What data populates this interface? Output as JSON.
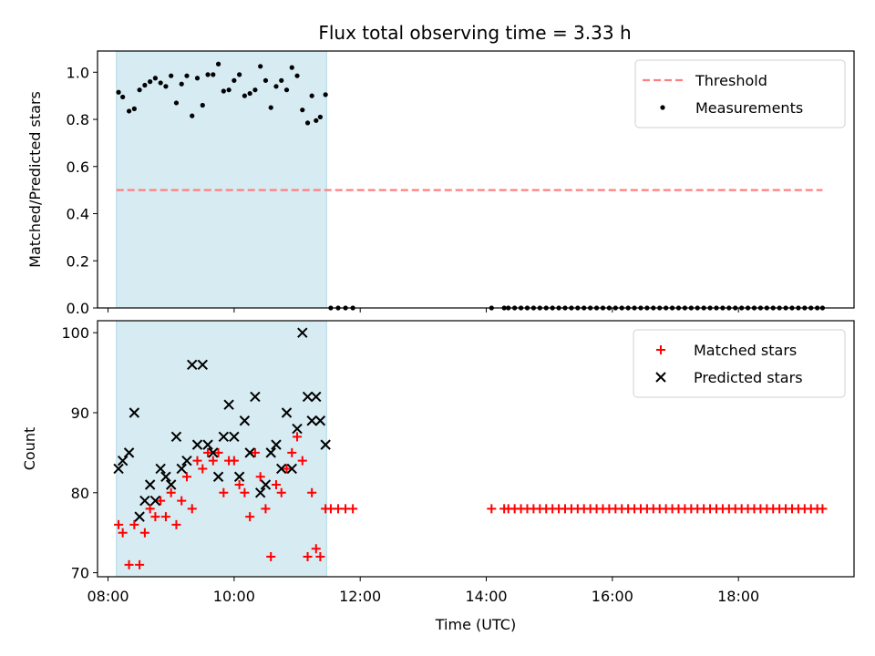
{
  "figure_title": "Flux total observing time = 3.33 h",
  "chart_data": [
    {
      "type": "scatter",
      "ylabel": "Matched/Predicted stars",
      "ylim": [
        0.0,
        1.09
      ],
      "yticks": [
        0.0,
        0.2,
        0.4,
        0.6,
        0.8,
        1.0
      ],
      "ytick_labels": [
        "0.0",
        "0.2",
        "0.4",
        "0.6",
        "0.8",
        "1.0"
      ],
      "xlim": [
        "07:50",
        "19:50"
      ],
      "xticks": [
        "08:00",
        "10:00",
        "12:00",
        "14:00",
        "16:00",
        "18:00"
      ],
      "shaded_span": [
        "08:08",
        "11:28"
      ],
      "legend_position": "upper right",
      "threshold": {
        "name": "Threshold",
        "value": 0.5,
        "x_range": [
          "08:08",
          "19:20"
        ],
        "color": "#ff7f7f"
      },
      "series": [
        {
          "name": "Measurements",
          "color": "#000000",
          "points": [
            [
              "08:10",
              0.915
            ],
            [
              "08:14",
              0.895
            ],
            [
              "08:20",
              0.835
            ],
            [
              "08:25",
              0.845
            ],
            [
              "08:30",
              0.925
            ],
            [
              "08:35",
              0.945
            ],
            [
              "08:40",
              0.96
            ],
            [
              "08:45",
              0.975
            ],
            [
              "08:50",
              0.955
            ],
            [
              "08:55",
              0.94
            ],
            [
              "09:00",
              0.985
            ],
            [
              "09:05",
              0.87
            ],
            [
              "09:10",
              0.95
            ],
            [
              "09:15",
              0.985
            ],
            [
              "09:20",
              0.815
            ],
            [
              "09:25",
              0.975
            ],
            [
              "09:30",
              0.86
            ],
            [
              "09:35",
              0.99
            ],
            [
              "09:40",
              0.99
            ],
            [
              "09:45",
              1.035
            ],
            [
              "09:50",
              0.92
            ],
            [
              "09:55",
              0.925
            ],
            [
              "10:00",
              0.965
            ],
            [
              "10:05",
              0.99
            ],
            [
              "10:10",
              0.9
            ],
            [
              "10:15",
              0.91
            ],
            [
              "10:20",
              0.925
            ],
            [
              "10:25",
              1.025
            ],
            [
              "10:30",
              0.965
            ],
            [
              "10:35",
              0.85
            ],
            [
              "10:40",
              0.94
            ],
            [
              "10:45",
              0.965
            ],
            [
              "10:50",
              0.925
            ],
            [
              "10:55",
              1.02
            ],
            [
              "11:00",
              0.985
            ],
            [
              "11:05",
              0.84
            ],
            [
              "11:10",
              0.785
            ],
            [
              "11:14",
              0.9
            ],
            [
              "11:18",
              0.795
            ],
            [
              "11:22",
              0.81
            ],
            [
              "11:27",
              0.905
            ],
            [
              "11:32",
              0.0
            ],
            [
              "11:39",
              0.0
            ],
            [
              "11:46",
              0.0
            ],
            [
              "11:53",
              0.0
            ],
            [
              "14:05",
              0.0
            ],
            [
              "14:17",
              0.0
            ],
            [
              "14:21",
              0.0
            ],
            [
              "14:27",
              0.0
            ],
            [
              "14:33",
              0.0
            ],
            [
              "14:39",
              0.0
            ],
            [
              "14:45",
              0.0
            ],
            [
              "14:51",
              0.0
            ],
            [
              "14:57",
              0.0
            ],
            [
              "15:03",
              0.0
            ],
            [
              "15:09",
              0.0
            ],
            [
              "15:15",
              0.0
            ],
            [
              "15:21",
              0.0
            ],
            [
              "15:27",
              0.0
            ],
            [
              "15:33",
              0.0
            ],
            [
              "15:39",
              0.0
            ],
            [
              "15:45",
              0.0
            ],
            [
              "15:51",
              0.0
            ],
            [
              "15:57",
              0.0
            ],
            [
              "16:03",
              0.0
            ],
            [
              "16:09",
              0.0
            ],
            [
              "16:15",
              0.0
            ],
            [
              "16:21",
              0.0
            ],
            [
              "16:27",
              0.0
            ],
            [
              "16:33",
              0.0
            ],
            [
              "16:39",
              0.0
            ],
            [
              "16:45",
              0.0
            ],
            [
              "16:51",
              0.0
            ],
            [
              "16:57",
              0.0
            ],
            [
              "17:03",
              0.0
            ],
            [
              "17:09",
              0.0
            ],
            [
              "17:15",
              0.0
            ],
            [
              "17:21",
              0.0
            ],
            [
              "17:27",
              0.0
            ],
            [
              "17:33",
              0.0
            ],
            [
              "17:39",
              0.0
            ],
            [
              "17:45",
              0.0
            ],
            [
              "17:51",
              0.0
            ],
            [
              "17:57",
              0.0
            ],
            [
              "18:03",
              0.0
            ],
            [
              "18:09",
              0.0
            ],
            [
              "18:15",
              0.0
            ],
            [
              "18:21",
              0.0
            ],
            [
              "18:27",
              0.0
            ],
            [
              "18:33",
              0.0
            ],
            [
              "18:39",
              0.0
            ],
            [
              "18:45",
              0.0
            ],
            [
              "18:51",
              0.0
            ],
            [
              "18:57",
              0.0
            ],
            [
              "19:03",
              0.0
            ],
            [
              "19:09",
              0.0
            ],
            [
              "19:15",
              0.0
            ],
            [
              "19:20",
              0.0
            ]
          ]
        }
      ]
    },
    {
      "type": "scatter",
      "ylabel": "Count",
      "xlabel": "Time (UTC)",
      "ylim": [
        69.5,
        101.5
      ],
      "yticks": [
        70,
        80,
        90,
        100
      ],
      "ytick_labels": [
        "70",
        "80",
        "90",
        "100"
      ],
      "xlim": [
        "07:50",
        "19:50"
      ],
      "xticks": [
        "08:00",
        "10:00",
        "12:00",
        "14:00",
        "16:00",
        "18:00"
      ],
      "xtick_labels": [
        "08:00",
        "10:00",
        "12:00",
        "14:00",
        "16:00",
        "18:00"
      ],
      "shaded_span": [
        "08:08",
        "11:28"
      ],
      "legend_position": "upper right",
      "series": [
        {
          "name": "Matched stars",
          "marker": "+",
          "color": "#ff0000",
          "points": [
            [
              "08:10",
              76
            ],
            [
              "08:14",
              75
            ],
            [
              "08:20",
              71
            ],
            [
              "08:25",
              76
            ],
            [
              "08:30",
              71
            ],
            [
              "08:35",
              75
            ],
            [
              "08:40",
              78
            ],
            [
              "08:45",
              77
            ],
            [
              "08:50",
              79
            ],
            [
              "08:55",
              77
            ],
            [
              "09:00",
              80
            ],
            [
              "09:05",
              76
            ],
            [
              "09:10",
              79
            ],
            [
              "09:15",
              82
            ],
            [
              "09:20",
              78
            ],
            [
              "09:25",
              84
            ],
            [
              "09:30",
              83
            ],
            [
              "09:35",
              85
            ],
            [
              "09:40",
              84
            ],
            [
              "09:45",
              85
            ],
            [
              "09:50",
              80
            ],
            [
              "09:55",
              84
            ],
            [
              "10:00",
              84
            ],
            [
              "10:05",
              81
            ],
            [
              "10:10",
              80
            ],
            [
              "10:15",
              77
            ],
            [
              "10:20",
              85
            ],
            [
              "10:25",
              82
            ],
            [
              "10:30",
              78
            ],
            [
              "10:35",
              72
            ],
            [
              "10:40",
              81
            ],
            [
              "10:45",
              80
            ],
            [
              "10:50",
              83
            ],
            [
              "10:55",
              85
            ],
            [
              "11:00",
              87
            ],
            [
              "11:05",
              84
            ],
            [
              "11:10",
              72
            ],
            [
              "11:14",
              80
            ],
            [
              "11:18",
              73
            ],
            [
              "11:22",
              72
            ],
            [
              "11:27",
              78
            ],
            [
              "11:32",
              78
            ],
            [
              "11:39",
              78
            ],
            [
              "11:46",
              78
            ],
            [
              "11:53",
              78
            ],
            [
              "14:05",
              78
            ],
            [
              "14:17",
              78
            ],
            [
              "14:21",
              78
            ],
            [
              "14:27",
              78
            ],
            [
              "14:33",
              78
            ],
            [
              "14:39",
              78
            ],
            [
              "14:45",
              78
            ],
            [
              "14:51",
              78
            ],
            [
              "14:57",
              78
            ],
            [
              "15:03",
              78
            ],
            [
              "15:09",
              78
            ],
            [
              "15:15",
              78
            ],
            [
              "15:21",
              78
            ],
            [
              "15:27",
              78
            ],
            [
              "15:33",
              78
            ],
            [
              "15:39",
              78
            ],
            [
              "15:45",
              78
            ],
            [
              "15:51",
              78
            ],
            [
              "15:57",
              78
            ],
            [
              "16:03",
              78
            ],
            [
              "16:09",
              78
            ],
            [
              "16:15",
              78
            ],
            [
              "16:21",
              78
            ],
            [
              "16:27",
              78
            ],
            [
              "16:33",
              78
            ],
            [
              "16:39",
              78
            ],
            [
              "16:45",
              78
            ],
            [
              "16:51",
              78
            ],
            [
              "16:57",
              78
            ],
            [
              "17:03",
              78
            ],
            [
              "17:09",
              78
            ],
            [
              "17:15",
              78
            ],
            [
              "17:21",
              78
            ],
            [
              "17:27",
              78
            ],
            [
              "17:33",
              78
            ],
            [
              "17:39",
              78
            ],
            [
              "17:45",
              78
            ],
            [
              "17:51",
              78
            ],
            [
              "17:57",
              78
            ],
            [
              "18:03",
              78
            ],
            [
              "18:09",
              78
            ],
            [
              "18:15",
              78
            ],
            [
              "18:21",
              78
            ],
            [
              "18:27",
              78
            ],
            [
              "18:33",
              78
            ],
            [
              "18:39",
              78
            ],
            [
              "18:45",
              78
            ],
            [
              "18:51",
              78
            ],
            [
              "18:57",
              78
            ],
            [
              "19:03",
              78
            ],
            [
              "19:09",
              78
            ],
            [
              "19:15",
              78
            ],
            [
              "19:20",
              78
            ]
          ]
        },
        {
          "name": "Predicted stars",
          "marker": "x",
          "color": "#000000",
          "points": [
            [
              "08:10",
              83
            ],
            [
              "08:14",
              84
            ],
            [
              "08:20",
              85
            ],
            [
              "08:25",
              90
            ],
            [
              "08:30",
              77
            ],
            [
              "08:35",
              79
            ],
            [
              "08:40",
              81
            ],
            [
              "08:45",
              79
            ],
            [
              "08:50",
              83
            ],
            [
              "08:55",
              82
            ],
            [
              "09:00",
              81
            ],
            [
              "09:05",
              87
            ],
            [
              "09:10",
              83
            ],
            [
              "09:15",
              84
            ],
            [
              "09:20",
              96
            ],
            [
              "09:25",
              86
            ],
            [
              "09:30",
              96
            ],
            [
              "09:35",
              86
            ],
            [
              "09:40",
              85
            ],
            [
              "09:45",
              82
            ],
            [
              "09:50",
              87
            ],
            [
              "09:55",
              91
            ],
            [
              "10:00",
              87
            ],
            [
              "10:05",
              82
            ],
            [
              "10:10",
              89
            ],
            [
              "10:15",
              85
            ],
            [
              "10:20",
              92
            ],
            [
              "10:25",
              80
            ],
            [
              "10:30",
              81
            ],
            [
              "10:35",
              85
            ],
            [
              "10:40",
              86
            ],
            [
              "10:45",
              83
            ],
            [
              "10:50",
              90
            ],
            [
              "10:55",
              83
            ],
            [
              "11:00",
              88
            ],
            [
              "11:05",
              100
            ],
            [
              "11:10",
              92
            ],
            [
              "11:14",
              89
            ],
            [
              "11:18",
              92
            ],
            [
              "11:22",
              89
            ],
            [
              "11:27",
              86
            ]
          ]
        }
      ]
    }
  ]
}
